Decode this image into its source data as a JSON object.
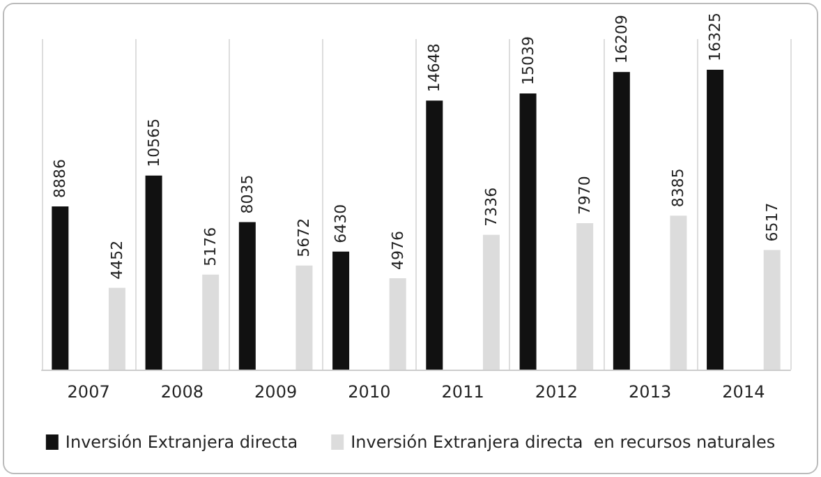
{
  "chart_data": {
    "type": "bar",
    "categories": [
      "2007",
      "2008",
      "2009",
      "2010",
      "2011",
      "2012",
      "2013",
      "2014"
    ],
    "series": [
      {
        "name": "Inversión Extranjera directa",
        "color": "#111111",
        "values": [
          8886,
          10565,
          8035,
          6430,
          14648,
          15039,
          16209,
          16325
        ]
      },
      {
        "name": "Inversión Extranjera directa  en recursos naturales",
        "color": "#dcdcdc",
        "values": [
          4452,
          5176,
          5672,
          4976,
          7336,
          7970,
          8385,
          6517
        ]
      }
    ],
    "data_labels": true,
    "grid": "x",
    "legend": "bottom"
  }
}
